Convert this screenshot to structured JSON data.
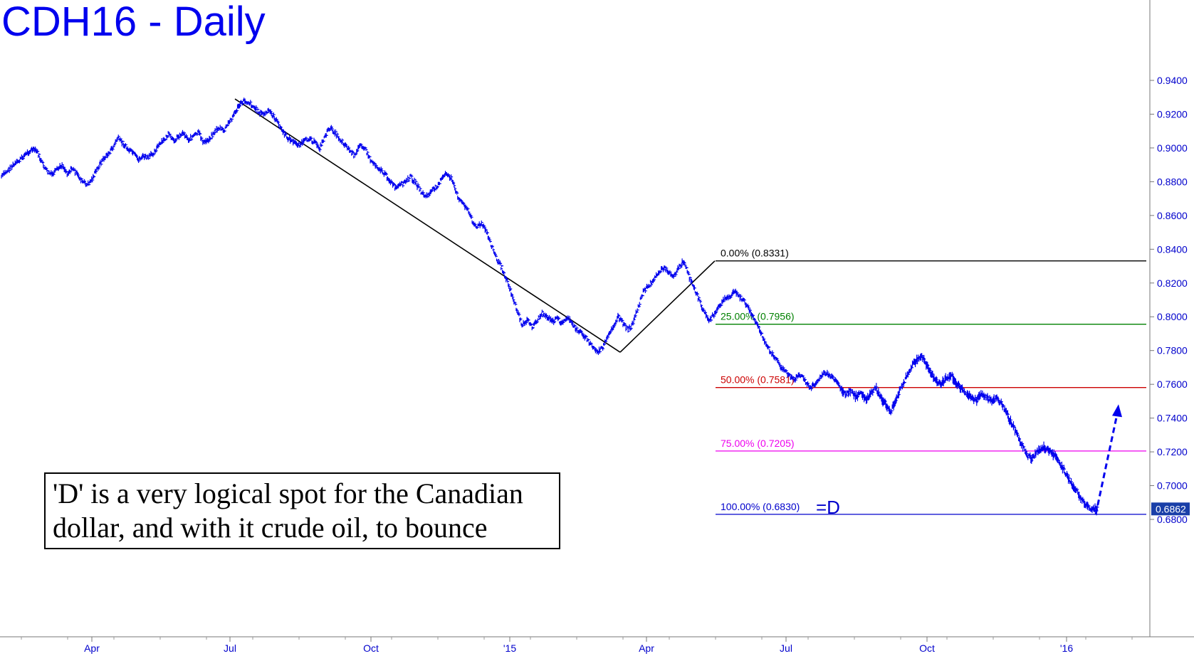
{
  "chart_data": {
    "type": "line",
    "title": "CDH16 - Daily",
    "ylim": [
      0.665,
      0.95
    ],
    "y_ticks": [
      "0.9400",
      "0.9200",
      "0.9000",
      "0.8800",
      "0.8600",
      "0.8400",
      "0.8200",
      "0.8000",
      "0.7800",
      "0.7600",
      "0.7400",
      "0.7200",
      "0.7000",
      "0.6800"
    ],
    "x_labels": [
      "Apr",
      "Jul",
      "Oct",
      "'15",
      "Apr",
      "Jul",
      "Oct",
      "'16"
    ],
    "last_price": "0.6862",
    "price_series_color": "#0000ee",
    "fib_levels": [
      {
        "label": "0.00% (0.8331)",
        "value": 0.8331,
        "color": "#000000"
      },
      {
        "label": "25.00% (0.7956)",
        "value": 0.7956,
        "color": "#008000"
      },
      {
        "label": "50.00% (0.7581)",
        "value": 0.7581,
        "color": "#cc0000"
      },
      {
        "label": "75.00% (0.7205)",
        "value": 0.7205,
        "color": "#ee00ee"
      },
      {
        "label": "100.00% (0.6830)",
        "value": 0.683,
        "color": "#0000cc"
      }
    ],
    "target_label": "=D",
    "pivots": [
      {
        "x": "Jul 2014",
        "y": 0.929
      },
      {
        "x": "Mar 2015",
        "y": 0.779
      },
      {
        "x": "May 2015",
        "y": 0.8331
      }
    ],
    "projection": {
      "from": 0.683,
      "to": 0.7465,
      "style": "dashed-arrow"
    },
    "series": [
      {
        "values": [
          0.883,
          0.886,
          0.889,
          0.891,
          0.894,
          0.897,
          0.899,
          0.898,
          0.891,
          0.886,
          0.884,
          0.887,
          0.89,
          0.885,
          0.888,
          0.884,
          0.88,
          0.878,
          0.882,
          0.888,
          0.893,
          0.896,
          0.9,
          0.906,
          0.903,
          0.899,
          0.897,
          0.893,
          0.895,
          0.894,
          0.897,
          0.901,
          0.904,
          0.908,
          0.904,
          0.907,
          0.909,
          0.905,
          0.907,
          0.909,
          0.903,
          0.905,
          0.909,
          0.912,
          0.91,
          0.915,
          0.92,
          0.925,
          0.928,
          0.927,
          0.924,
          0.921,
          0.92,
          0.922,
          0.918,
          0.913,
          0.908,
          0.905,
          0.903,
          0.902,
          0.904,
          0.906,
          0.903,
          0.9,
          0.907,
          0.912,
          0.909,
          0.905,
          0.902,
          0.898,
          0.895,
          0.903,
          0.899,
          0.893,
          0.89,
          0.887,
          0.884,
          0.88,
          0.876,
          0.878,
          0.88,
          0.883,
          0.879,
          0.874,
          0.871,
          0.874,
          0.877,
          0.881,
          0.885,
          0.882,
          0.873,
          0.868,
          0.865,
          0.858,
          0.853,
          0.855,
          0.85,
          0.842,
          0.834,
          0.829,
          0.822,
          0.813,
          0.804,
          0.795,
          0.798,
          0.794,
          0.798,
          0.802,
          0.8,
          0.797,
          0.799,
          0.796,
          0.8,
          0.795,
          0.792,
          0.79,
          0.786,
          0.782,
          0.779,
          0.782,
          0.788,
          0.794,
          0.8,
          0.796,
          0.792,
          0.796,
          0.806,
          0.815,
          0.818,
          0.822,
          0.826,
          0.829,
          0.827,
          0.824,
          0.829,
          0.8331,
          0.824,
          0.818,
          0.81,
          0.803,
          0.798,
          0.801,
          0.806,
          0.81,
          0.812,
          0.815,
          0.812,
          0.809,
          0.804,
          0.798,
          0.792,
          0.786,
          0.78,
          0.776,
          0.771,
          0.768,
          0.765,
          0.763,
          0.766,
          0.762,
          0.758,
          0.76,
          0.764,
          0.767,
          0.765,
          0.762,
          0.758,
          0.754,
          0.756,
          0.753,
          0.755,
          0.751,
          0.754,
          0.758,
          0.752,
          0.748,
          0.744,
          0.75,
          0.758,
          0.764,
          0.77,
          0.774,
          0.777,
          0.772,
          0.766,
          0.762,
          0.76,
          0.764,
          0.766,
          0.76,
          0.757,
          0.754,
          0.752,
          0.751,
          0.754,
          0.752,
          0.75,
          0.752,
          0.748,
          0.742,
          0.736,
          0.73,
          0.724,
          0.718,
          0.716,
          0.72,
          0.723,
          0.722,
          0.719,
          0.715,
          0.71,
          0.705,
          0.7,
          0.696,
          0.691,
          0.687,
          0.6862
        ]
      }
    ]
  },
  "annotation": {
    "line1": "'D' is a very logical spot for the Canadian",
    "line2": "dollar, and with it crude oil, to bounce"
  }
}
